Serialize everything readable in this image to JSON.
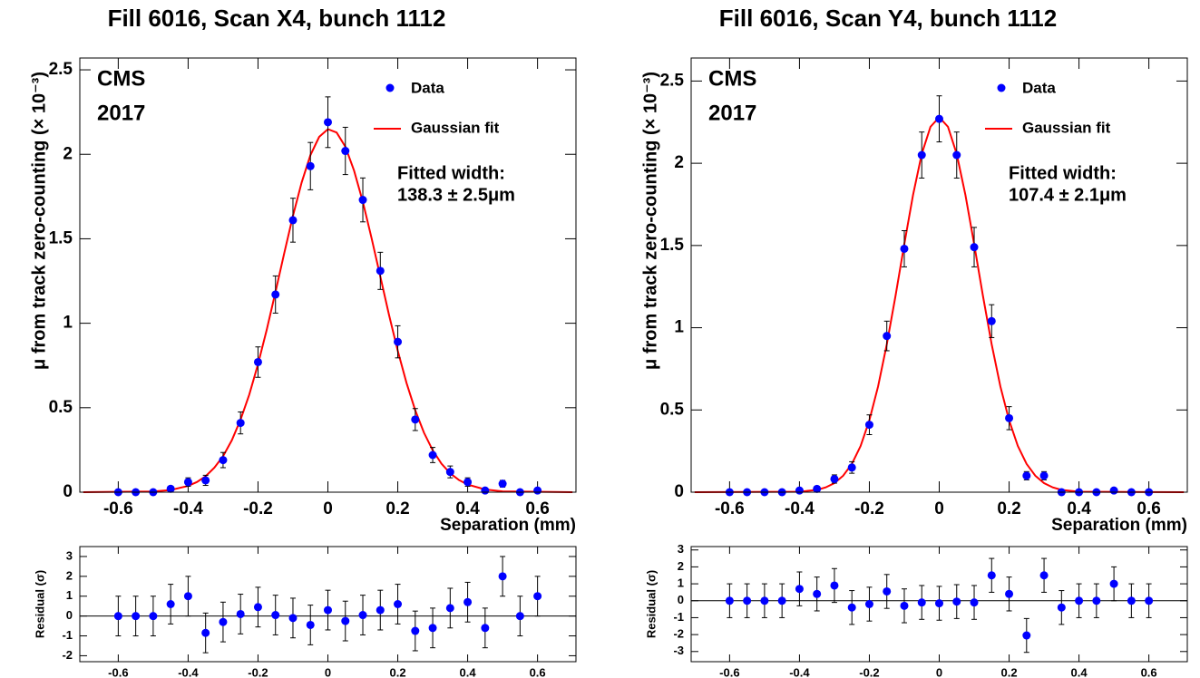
{
  "chart_data": [
    {
      "type": "scatter",
      "title": "Fill 6016, Scan X4, bunch 1112",
      "xlabel": "Separation (mm)",
      "ylabel": "μ from track zero-counting (× 10⁻³)",
      "xlim": [
        -0.71,
        0.71
      ],
      "ylim": [
        0,
        2.57
      ],
      "xticks": [
        -0.6,
        -0.4,
        -0.2,
        0,
        0.2,
        0.4,
        0.6
      ],
      "yticks": [
        0,
        0.5,
        1,
        1.5,
        2,
        2.5
      ],
      "annotations": [
        "CMS",
        "2017",
        "Fitted width:",
        "138.3 ± 2.5μm"
      ],
      "series": [
        {
          "name": "Data",
          "color": "#0000ff",
          "x": [
            -0.6,
            -0.55,
            -0.5,
            -0.45,
            -0.4,
            -0.35,
            -0.3,
            -0.25,
            -0.2,
            -0.15,
            -0.1,
            -0.05,
            0,
            0.05,
            0.1,
            0.15,
            0.2,
            0.25,
            0.3,
            0.35,
            0.4,
            0.45,
            0.5,
            0.55,
            0.6
          ],
          "values": [
            0,
            0,
            0,
            0.02,
            0.06,
            0.07,
            0.19,
            0.41,
            0.77,
            1.17,
            1.61,
            1.93,
            2.19,
            2.02,
            1.73,
            1.31,
            0.89,
            0.43,
            0.22,
            0.12,
            0.06,
            0.01,
            0.05,
            0,
            0.01
          ],
          "errors": [
            0.01,
            0.01,
            0.01,
            0.015,
            0.025,
            0.03,
            0.045,
            0.065,
            0.09,
            0.11,
            0.13,
            0.14,
            0.15,
            0.14,
            0.13,
            0.11,
            0.095,
            0.065,
            0.045,
            0.035,
            0.025,
            0.01,
            0.02,
            0.01,
            0.01
          ]
        },
        {
          "name": "Gaussian fit",
          "color": "#ff0000",
          "x": [
            -0.7,
            -0.5,
            -0.45,
            -0.4,
            -0.375,
            -0.35,
            -0.325,
            -0.3,
            -0.275,
            -0.25,
            -0.225,
            -0.2,
            -0.175,
            -0.15,
            -0.125,
            -0.1,
            -0.075,
            -0.05,
            -0.025,
            0,
            0.025,
            0.05,
            0.075,
            0.1,
            0.125,
            0.15,
            0.175,
            0.2,
            0.225,
            0.25,
            0.275,
            0.3,
            0.325,
            0.35,
            0.375,
            0.4,
            0.45,
            0.5,
            0.7
          ],
          "values": [
            0,
            0.004,
            0.013,
            0.037,
            0.06,
            0.094,
            0.145,
            0.213,
            0.307,
            0.429,
            0.578,
            0.758,
            0.962,
            1.185,
            1.414,
            1.636,
            1.834,
            1.995,
            2.103,
            2.149,
            2.129,
            2.045,
            1.903,
            1.719,
            1.504,
            1.277,
            1.049,
            0.837,
            0.647,
            0.485,
            0.352,
            0.248,
            0.169,
            0.112,
            0.072,
            0.045,
            0.016,
            0.005,
            0
          ]
        }
      ]
    },
    {
      "type": "scatter",
      "ylabel": "Residual (σ)",
      "xlim": [
        -0.71,
        0.71
      ],
      "ylim": [
        -2.3,
        3.5
      ],
      "xticks": [
        -0.6,
        -0.4,
        -0.2,
        0,
        0.2,
        0.4,
        0.6
      ],
      "yticks": [
        -2,
        -1,
        0,
        1,
        2,
        3
      ],
      "color": "#0000ff",
      "x": [
        -0.6,
        -0.55,
        -0.5,
        -0.45,
        -0.4,
        -0.35,
        -0.3,
        -0.25,
        -0.2,
        -0.15,
        -0.1,
        -0.05,
        0,
        0.05,
        0.1,
        0.15,
        0.2,
        0.25,
        0.3,
        0.35,
        0.4,
        0.45,
        0.5,
        0.55,
        0.6
      ],
      "values": [
        0,
        0,
        0,
        0.6,
        1.0,
        -0.85,
        -0.3,
        0.1,
        0.45,
        0.05,
        -0.1,
        -0.45,
        0.3,
        -0.25,
        0.05,
        0.3,
        0.6,
        -0.75,
        -0.6,
        0.4,
        0.7,
        -0.6,
        2.0,
        0,
        1.0
      ],
      "errors": [
        1,
        1,
        1,
        1,
        1,
        1,
        1,
        1,
        1,
        1,
        1,
        1,
        1,
        1,
        1,
        1,
        1,
        1,
        1,
        1,
        1,
        1,
        1,
        1,
        1
      ]
    },
    {
      "type": "scatter",
      "title": "Fill 6016, Scan Y4, bunch 1112",
      "xlabel": "Separation (mm)",
      "ylabel": "μ from track zero-counting (× 10⁻³)",
      "xlim": [
        -0.71,
        0.71
      ],
      "ylim": [
        0,
        2.64
      ],
      "xticks": [
        -0.6,
        -0.4,
        -0.2,
        0,
        0.2,
        0.4,
        0.6
      ],
      "yticks": [
        0,
        0.5,
        1,
        1.5,
        2,
        2.5
      ],
      "annotations": [
        "CMS",
        "2017",
        "Fitted width:",
        "107.4 ± 2.1μm"
      ],
      "series": [
        {
          "name": "Data",
          "color": "#0000ff",
          "x": [
            -0.6,
            -0.55,
            -0.5,
            -0.45,
            -0.4,
            -0.35,
            -0.3,
            -0.25,
            -0.2,
            -0.15,
            -0.1,
            -0.05,
            0,
            0.05,
            0.1,
            0.15,
            0.2,
            0.25,
            0.3,
            0.35,
            0.4,
            0.45,
            0.5,
            0.55,
            0.6
          ],
          "values": [
            0,
            0,
            0,
            0,
            0.01,
            0.02,
            0.08,
            0.15,
            0.41,
            0.95,
            1.48,
            2.05,
            2.27,
            2.05,
            1.49,
            1.04,
            0.45,
            0.1,
            0.1,
            0,
            0,
            0,
            0.01,
            0,
            0
          ],
          "errors": [
            0.01,
            0.01,
            0.01,
            0.01,
            0.01,
            0.015,
            0.025,
            0.035,
            0.06,
            0.09,
            0.11,
            0.14,
            0.14,
            0.14,
            0.12,
            0.1,
            0.07,
            0.025,
            0.025,
            0.01,
            0.01,
            0.01,
            0.01,
            0.01,
            0.01
          ]
        },
        {
          "name": "Gaussian fit",
          "color": "#ff0000",
          "x": [
            -0.7,
            -0.4,
            -0.35,
            -0.325,
            -0.3,
            -0.275,
            -0.25,
            -0.225,
            -0.2,
            -0.175,
            -0.15,
            -0.125,
            -0.1,
            -0.075,
            -0.05,
            -0.025,
            0,
            0.025,
            0.05,
            0.075,
            0.1,
            0.125,
            0.15,
            0.175,
            0.2,
            0.225,
            0.25,
            0.275,
            0.3,
            0.325,
            0.35,
            0.4,
            0.7
          ],
          "values": [
            0,
            0.003,
            0.014,
            0.029,
            0.055,
            0.1,
            0.172,
            0.281,
            0.437,
            0.643,
            0.9,
            1.195,
            1.508,
            1.807,
            2.057,
            2.222,
            2.28,
            2.222,
            2.057,
            1.807,
            1.508,
            1.195,
            0.9,
            0.643,
            0.437,
            0.281,
            0.172,
            0.1,
            0.055,
            0.029,
            0.014,
            0.003,
            0
          ]
        }
      ]
    },
    {
      "type": "scatter",
      "ylabel": "Residual (σ)",
      "xlim": [
        -0.71,
        0.71
      ],
      "ylim": [
        -3.6,
        3.2
      ],
      "xticks": [
        -0.6,
        -0.4,
        -0.2,
        0,
        0.2,
        0.4,
        0.6
      ],
      "yticks": [
        -3,
        -2,
        -1,
        0,
        1,
        2,
        3
      ],
      "color": "#0000ff",
      "x": [
        -0.6,
        -0.55,
        -0.5,
        -0.45,
        -0.4,
        -0.35,
        -0.3,
        -0.25,
        -0.2,
        -0.15,
        -0.1,
        -0.05,
        0,
        0.05,
        0.1,
        0.15,
        0.2,
        0.25,
        0.3,
        0.35,
        0.4,
        0.45,
        0.5,
        0.55,
        0.6
      ],
      "values": [
        0,
        0,
        0,
        0,
        0.7,
        0.4,
        0.9,
        -0.4,
        -0.2,
        0.55,
        -0.3,
        -0.1,
        -0.15,
        -0.05,
        -0.1,
        1.5,
        0.4,
        -2.05,
        1.5,
        -0.4,
        0,
        0,
        1.0,
        0,
        0
      ],
      "errors": [
        1,
        1,
        1,
        1,
        1,
        1,
        1,
        1,
        1,
        1,
        1,
        1,
        1,
        1,
        1,
        1,
        1,
        1,
        1,
        1,
        1,
        1,
        1,
        1,
        1
      ]
    }
  ]
}
